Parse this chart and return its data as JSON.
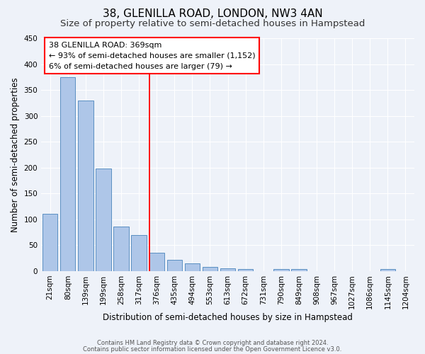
{
  "title": "38, GLENILLA ROAD, LONDON, NW3 4AN",
  "subtitle": "Size of property relative to semi-detached houses in Hampstead",
  "xlabel": "Distribution of semi-detached houses by size in Hampstead",
  "ylabel": "Number of semi-detached properties",
  "categories": [
    "21sqm",
    "80sqm",
    "139sqm",
    "199sqm",
    "258sqm",
    "317sqm",
    "376sqm",
    "435sqm",
    "494sqm",
    "553sqm",
    "613sqm",
    "672sqm",
    "731sqm",
    "790sqm",
    "849sqm",
    "908sqm",
    "967sqm",
    "1027sqm",
    "1086sqm",
    "1145sqm",
    "1204sqm"
  ],
  "values": [
    110,
    375,
    330,
    198,
    86,
    70,
    35,
    22,
    15,
    8,
    5,
    4,
    0,
    4,
    4,
    0,
    0,
    0,
    0,
    4,
    0
  ],
  "bar_color": "#aec6e8",
  "bar_edge_color": "#5a8fc2",
  "vline_x_index": 6,
  "vline_color": "red",
  "annotation_title": "38 GLENILLA ROAD: 369sqm",
  "annotation_line1": "← 93% of semi-detached houses are smaller (1,152)",
  "annotation_line2": "6% of semi-detached houses are larger (79) →",
  "annotation_box_color": "white",
  "annotation_box_edge_color": "red",
  "ylim": [
    0,
    450
  ],
  "yticks": [
    0,
    50,
    100,
    150,
    200,
    250,
    300,
    350,
    400,
    450
  ],
  "footer_line1": "Contains HM Land Registry data © Crown copyright and database right 2024.",
  "footer_line2": "Contains public sector information licensed under the Open Government Licence v3.0.",
  "bg_color": "#eef2f9",
  "grid_color": "white",
  "title_fontsize": 11,
  "subtitle_fontsize": 9.5,
  "axis_label_fontsize": 8.5,
  "tick_fontsize": 7.5
}
